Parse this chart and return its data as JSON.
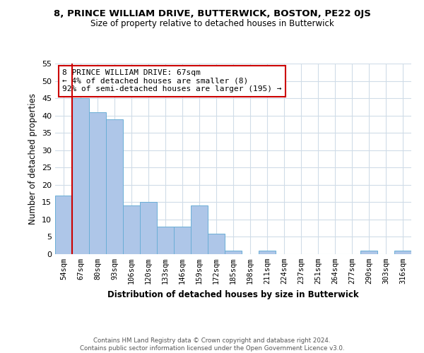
{
  "title": "8, PRINCE WILLIAM DRIVE, BUTTERWICK, BOSTON, PE22 0JS",
  "subtitle": "Size of property relative to detached houses in Butterwick",
  "xlabel": "Distribution of detached houses by size in Butterwick",
  "ylabel": "Number of detached properties",
  "bin_labels": [
    "54sqm",
    "67sqm",
    "80sqm",
    "93sqm",
    "106sqm",
    "120sqm",
    "133sqm",
    "146sqm",
    "159sqm",
    "172sqm",
    "185sqm",
    "198sqm",
    "211sqm",
    "224sqm",
    "237sqm",
    "251sqm",
    "264sqm",
    "277sqm",
    "290sqm",
    "303sqm",
    "316sqm"
  ],
  "bar_heights": [
    17,
    45,
    41,
    39,
    14,
    15,
    8,
    8,
    14,
    6,
    1,
    0,
    1,
    0,
    0,
    0,
    0,
    0,
    1,
    0,
    1
  ],
  "bar_color": "#aec6e8",
  "bar_edge_color": "#6aaed6",
  "highlight_color": "#cc0000",
  "ylim": [
    0,
    55
  ],
  "yticks": [
    0,
    5,
    10,
    15,
    20,
    25,
    30,
    35,
    40,
    45,
    50,
    55
  ],
  "annotation_text": "8 PRINCE WILLIAM DRIVE: 67sqm\n← 4% of detached houses are smaller (8)\n92% of semi-detached houses are larger (195) →",
  "annotation_box_color": "#cc0000",
  "footer_line1": "Contains HM Land Registry data © Crown copyright and database right 2024.",
  "footer_line2": "Contains public sector information licensed under the Open Government Licence v3.0.",
  "background_color": "#ffffff",
  "grid_color": "#d0dce8"
}
